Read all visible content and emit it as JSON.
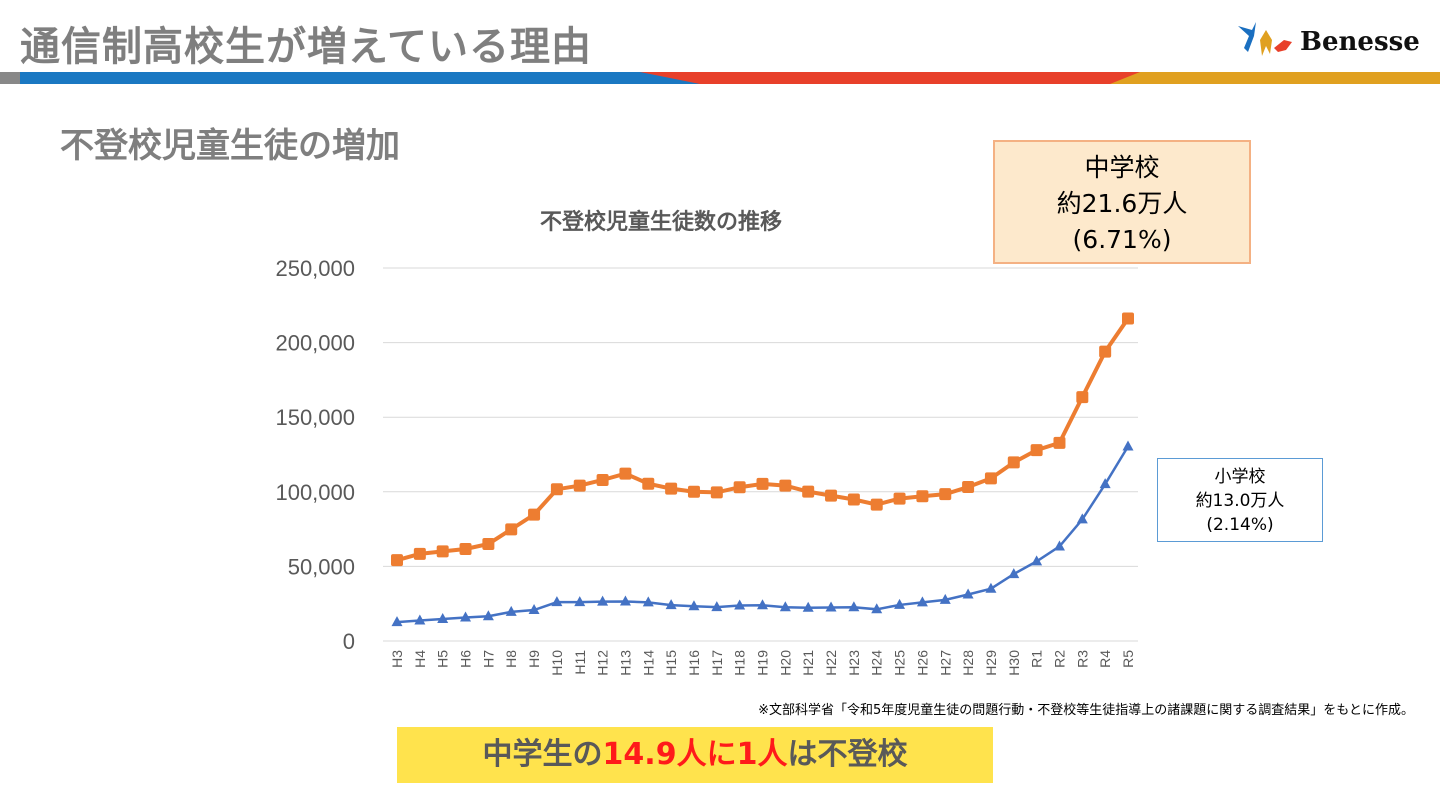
{
  "header": {
    "title": "通信制高校生が増えている理由",
    "logo_text": "Benesse"
  },
  "subtitle": "不登校児童生徒の増加",
  "chart_data": {
    "type": "line",
    "title": "不登校児童生徒数の推移",
    "categories": [
      "H3",
      "H4",
      "H5",
      "H6",
      "H7",
      "H8",
      "H9",
      "H10",
      "H11",
      "H12",
      "H13",
      "H14",
      "H15",
      "H16",
      "H17",
      "H18",
      "H19",
      "H20",
      "H21",
      "H22",
      "H23",
      "H24",
      "H25",
      "H26",
      "H27",
      "H28",
      "H29",
      "H30",
      "R1",
      "R2",
      "R3",
      "R4",
      "R5"
    ],
    "ylim": [
      0,
      250000
    ],
    "yticks": [
      "0",
      "50,000",
      "100,000",
      "150,000",
      "200,000",
      "250,000"
    ],
    "grid": true,
    "series": [
      {
        "key": "junior_high",
        "color": "#ed7d31",
        "marker": "square",
        "values": [
          54172,
          58421,
          60039,
          61663,
          65022,
          74853,
          84701,
          101675,
          104180,
          107913,
          112211,
          105383,
          102149,
          100040,
          99578,
          103069,
          105328,
          104153,
          100105,
          97428,
          94836,
          91446,
          95442,
          97033,
          98408,
          103235,
          108999,
          119687,
          127922,
          132777,
          163442,
          193936,
          216112
        ]
      },
      {
        "key": "elementary",
        "color": "#4472c4",
        "marker": "triangle",
        "values": [
          12645,
          13710,
          14769,
          15786,
          16569,
          19498,
          20765,
          26017,
          26047,
          26373,
          26511,
          25869,
          24077,
          23318,
          22709,
          23825,
          23927,
          22652,
          22327,
          22463,
          22622,
          21243,
          24175,
          25864,
          27583,
          31151,
          35032,
          44841,
          53350,
          63350,
          81498,
          105112,
          130370
        ]
      }
    ]
  },
  "callouts": {
    "junior_high": {
      "line1": "中学校",
      "line2": "約21.6万人",
      "line3": "(6.71%)"
    },
    "elementary": {
      "line1": "小学校",
      "line2": "約13.0万人",
      "line3": "(2.14%)"
    }
  },
  "footnote": "※文部科学省「令和5年度児童生徒の問題行動・不登校等生徒指導上の諸課題に関する調査結果」をもとに作成。",
  "banner": {
    "part1": "中学生の",
    "part2": "14.9人に1人",
    "part3": "は不登校"
  }
}
